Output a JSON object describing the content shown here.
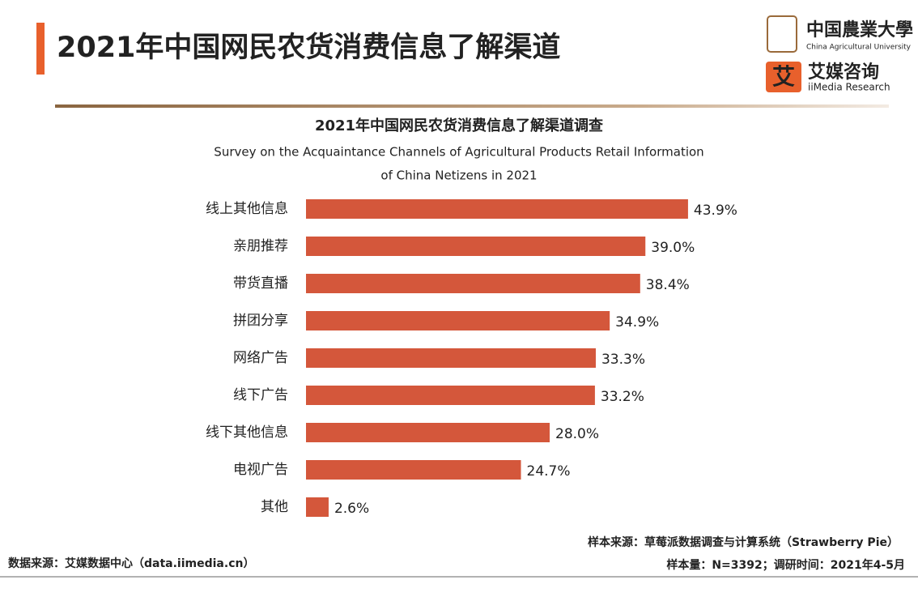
{
  "header": {
    "title": "2021年中国网民农货消费信息了解渠道"
  },
  "logos": {
    "cau_name": "中国農業大學",
    "cau_en": "China Agricultural University",
    "iimedia_icon": "艾",
    "iimedia_name": "艾媒咨询",
    "iimedia_en": "iiMedia Research"
  },
  "chart_data": {
    "type": "bar",
    "title": "2021年中国网民农货消费信息了解渠道调查",
    "subtitle": [
      "Survey on the Acquaintance Channels of Agricultural Products Retail Information",
      "of China Netizens in 2021"
    ],
    "categories": [
      "线上其他信息",
      "亲朋推荐",
      "带货直播",
      "拼团分享",
      "网络广告",
      "线下广告",
      "线下其他信息",
      "电视广告",
      "其他"
    ],
    "values": [
      43.9,
      39.0,
      38.4,
      34.9,
      33.3,
      33.2,
      28.0,
      24.7,
      2.6
    ],
    "value_labels": [
      "43.9%",
      "39.0%",
      "38.4%",
      "34.9%",
      "33.3%",
      "33.2%",
      "28.0%",
      "24.7%",
      "2.6%"
    ],
    "color": "#d4573b"
  },
  "footer": {
    "data_source": "数据来源：艾媒数据中心（data.iimedia.cn）",
    "sample_source": "样本来源：草莓派数据调查与计算系统（Strawberry Pie）",
    "sample_info": "样本量：N=3392；调研时间：2021年4-5月"
  }
}
